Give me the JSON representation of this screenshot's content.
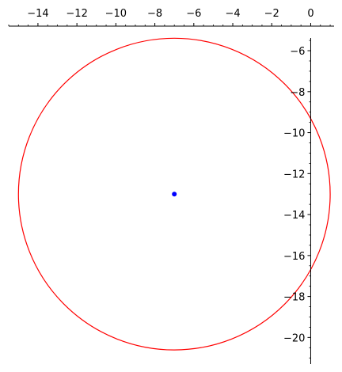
{
  "chart_data": {
    "type": "scatter",
    "title": "",
    "xlabel": "",
    "ylabel": "",
    "grid": false,
    "legend": "none",
    "xlim": [
      -15.5,
      1.2
    ],
    "ylim": [
      -21.3,
      -4.8
    ],
    "x_ticks": [
      -14,
      -12,
      -10,
      -8,
      -6,
      -4,
      -2,
      0
    ],
    "y_ticks": [
      -6,
      -8,
      -10,
      -12,
      -14,
      -16,
      -18,
      -20
    ],
    "x_tick_labels": [
      "−14",
      "−12",
      "−10",
      "−8",
      "−6",
      "−4",
      "−2",
      "0"
    ],
    "y_tick_labels": [
      "−6",
      "−8",
      "−10",
      "−12",
      "−14",
      "−16",
      "−18",
      "−20"
    ],
    "minor_tick_step": 0.5,
    "x_axis_at_y": "top",
    "y_axis_at_x": 0,
    "circle": {
      "center": [
        -7,
        -13
      ],
      "radius": 8,
      "color": "#ff0000"
    },
    "points": [
      {
        "x": -7,
        "y": -13,
        "color": "#0000ff"
      }
    ]
  }
}
